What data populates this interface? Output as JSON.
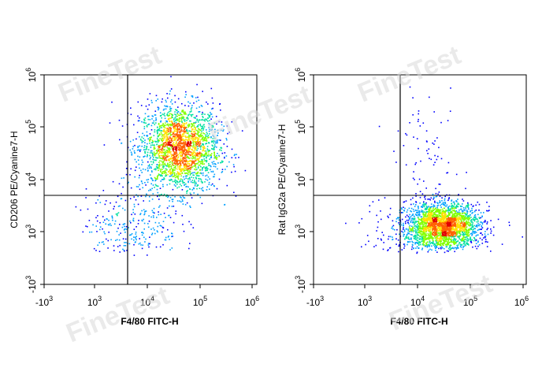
{
  "watermark": "FineTest",
  "colors": {
    "quadrant": "#000000",
    "frame": "#000000",
    "density": [
      "#0000ff",
      "#00a0ff",
      "#00e0a0",
      "#80ff00",
      "#ffe000",
      "#ff6000",
      "#e00000"
    ]
  },
  "chart_data": [
    {
      "type": "scatter",
      "xlabel": "F4/80 FITC-H",
      "ylabel": "CD206 PE/Cyanine7-H",
      "x_scale": "biexponential",
      "y_scale": "biexponential",
      "xlim": [
        "-10^3",
        "10^6"
      ],
      "ylim": [
        "-10^3",
        "10^6"
      ],
      "x_ticks": [
        "-10^3",
        "10^3",
        "10^4",
        "10^5",
        "10^6"
      ],
      "y_ticks": [
        "-10^3",
        "10^3",
        "10^4",
        "10^5",
        "10^6"
      ],
      "quadrant_gate": {
        "x": 4000,
        "y": 5000
      },
      "populations": [
        {
          "center": [
            40000,
            40000
          ],
          "spread_decades": [
            0.38,
            0.42
          ],
          "share": 0.9
        },
        {
          "center": [
            5000,
            1500
          ],
          "spread_decades": [
            0.45,
            0.35
          ],
          "share": 0.1
        }
      ]
    },
    {
      "type": "scatter",
      "xlabel": "F4/80 FITC-H",
      "ylabel": "Rat IgG2a PE/Cyanine7-H",
      "x_scale": "biexponential",
      "y_scale": "biexponential",
      "xlim": [
        "-10^3",
        "10^6"
      ],
      "ylim": [
        "-10^3",
        "10^6"
      ],
      "x_ticks": [
        "-10^3",
        "10^3",
        "10^4",
        "10^5",
        "10^6"
      ],
      "y_ticks": [
        "-10^3",
        "10^3",
        "10^4",
        "10^5",
        "10^6"
      ],
      "quadrant_gate": {
        "x": 4000,
        "y": 5000
      },
      "populations": [
        {
          "center": [
            30000,
            1300
          ],
          "spread_decades": [
            0.35,
            0.22
          ],
          "share": 0.92
        },
        {
          "center": [
            8000,
            1200
          ],
          "spread_decades": [
            0.5,
            0.35
          ],
          "share": 0.05
        },
        {
          "center": [
            15000,
            20000
          ],
          "spread_decades": [
            0.3,
            0.6
          ],
          "share": 0.03
        }
      ]
    }
  ]
}
